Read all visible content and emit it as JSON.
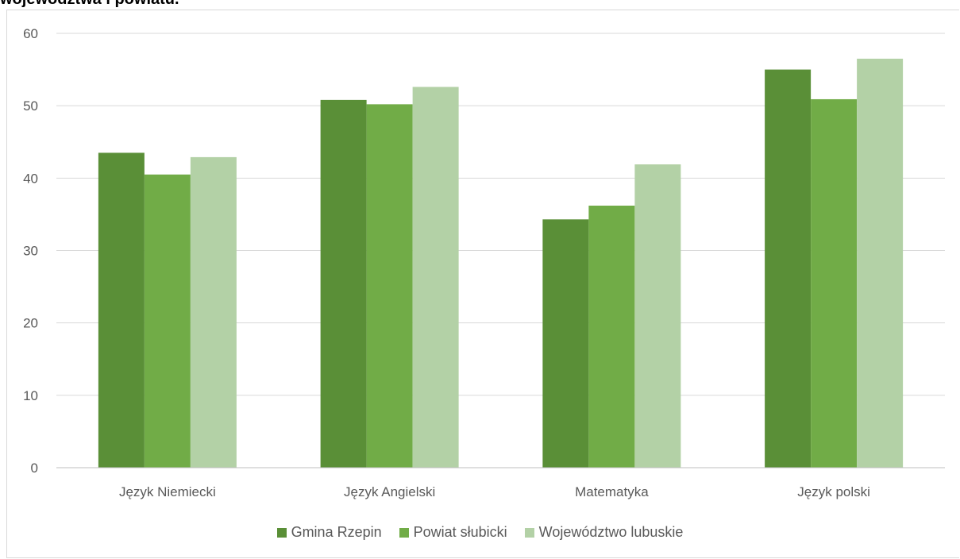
{
  "chart_data": {
    "type": "bar",
    "title": "województwa i powiatu.",
    "categories": [
      "Język Niemiecki",
      "Język Angielski",
      "Matematyka",
      "Język polski"
    ],
    "series": [
      {
        "name": "Gmina Rzepin",
        "color": "#5a8f37",
        "values": [
          43.5,
          50.8,
          34.3,
          55.0
        ]
      },
      {
        "name": "Powiat słubicki",
        "color": "#71ac47",
        "values": [
          40.5,
          50.2,
          36.2,
          50.9
        ]
      },
      {
        "name": "Województwo lubuskie",
        "color": "#b3d1a6",
        "values": [
          42.9,
          52.6,
          41.9,
          56.5
        ]
      }
    ],
    "ylim": [
      0,
      60
    ],
    "yticks": [
      "0",
      "10",
      "20",
      "30",
      "40",
      "50",
      "60"
    ],
    "grid": true,
    "legend_position": "bottom"
  }
}
